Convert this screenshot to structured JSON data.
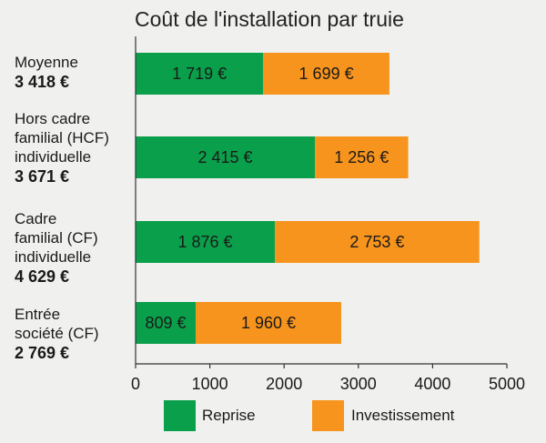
{
  "chart_data": {
    "type": "bar",
    "orientation": "horizontal",
    "stacked": true,
    "title": "Coût de l'installation par truie",
    "categories": [
      {
        "name_lines": [
          "Moyenne"
        ],
        "total": "3 418 €"
      },
      {
        "name_lines": [
          "Hors cadre",
          "familial (HCF)",
          "individuelle"
        ],
        "total": "3 671 €"
      },
      {
        "name_lines": [
          "Cadre",
          "familial (CF)",
          "individuelle"
        ],
        "total": "4 629 €"
      },
      {
        "name_lines": [
          "Entrée",
          "société (CF)"
        ],
        "total": "2 769 €"
      }
    ],
    "series": [
      {
        "name": "Reprise",
        "color": "#0aa04b",
        "values": [
          1719,
          2415,
          1876,
          809
        ],
        "labels": [
          "1 719 €",
          "2 415 €",
          "1 876 €",
          "809 €"
        ]
      },
      {
        "name": "Investissement",
        "color": "#f7941d",
        "values": [
          1699,
          1256,
          2753,
          1960
        ],
        "labels": [
          "1 699 €",
          "1 256 €",
          "2 753 €",
          "1 960 €"
        ]
      }
    ],
    "xlim": [
      0,
      5000
    ],
    "xticks": [
      "0",
      "1000",
      "2000",
      "3000",
      "4000",
      "5000"
    ],
    "xtick_values": [
      0,
      1000,
      2000,
      3000,
      4000,
      5000
    ],
    "grid": false,
    "legend_position": "bottom"
  }
}
